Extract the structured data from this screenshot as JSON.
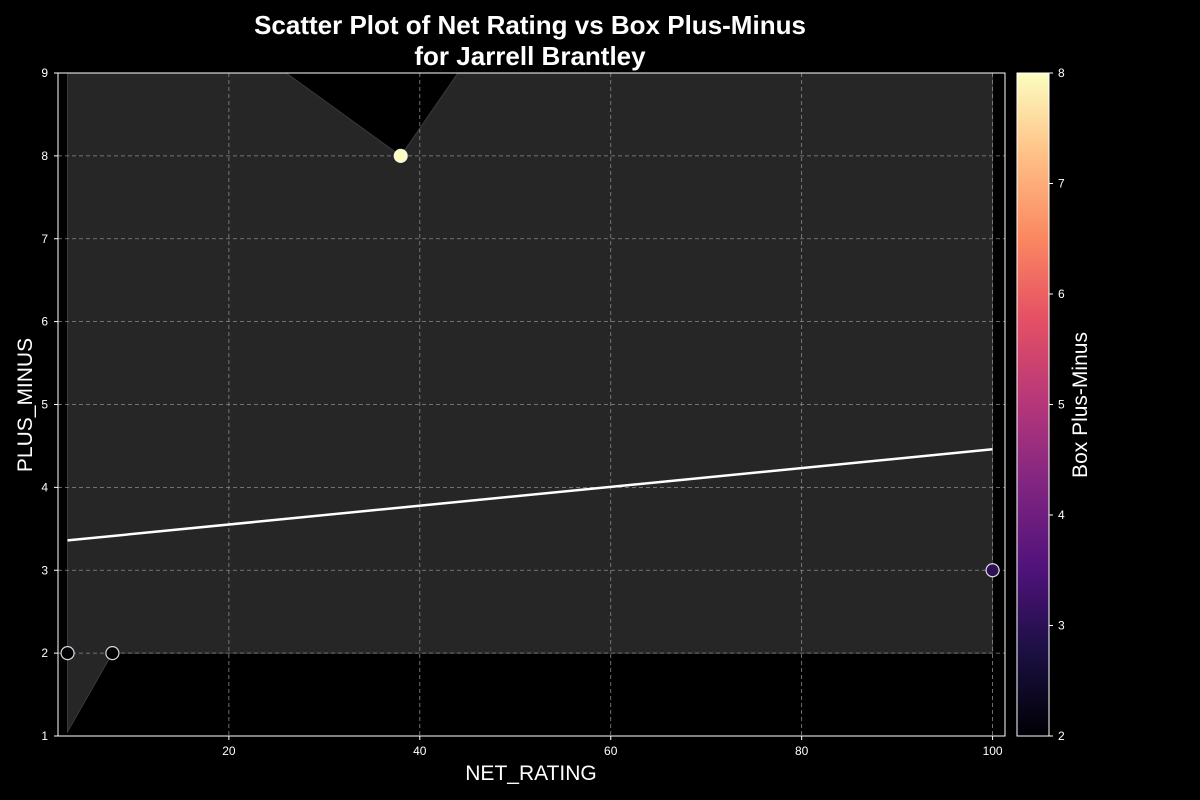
{
  "chart_data": {
    "type": "scatter",
    "title_lines": [
      "Scatter Plot of Net Rating vs Box Plus-Minus",
      "for Jarrell Brantley"
    ],
    "xlabel": "NET_RATING",
    "ylabel": "PLUS_MINUS",
    "xlim": [
      2.1,
      101.3
    ],
    "ylim": [
      1,
      9
    ],
    "x_ticks": [
      20,
      40,
      60,
      80,
      100
    ],
    "y_ticks": [
      1,
      2,
      3,
      4,
      5,
      6,
      7,
      8,
      9
    ],
    "grid": true,
    "points": [
      {
        "x": 3.1,
        "y": 2,
        "color_value": 2
      },
      {
        "x": 7.8,
        "y": 2,
        "color_value": 2
      },
      {
        "x": 38.0,
        "y": 8,
        "color_value": 8
      },
      {
        "x": 100.0,
        "y": 3,
        "color_value": 3
      }
    ],
    "trend_line": {
      "x": [
        3.1,
        100.0
      ],
      "y": [
        3.36,
        4.46
      ]
    },
    "confidence_band": {
      "upper": [
        [
          3.1,
          9.0
        ],
        [
          26.0,
          9.0
        ],
        [
          38.0,
          8.0
        ],
        [
          44.0,
          9.0
        ],
        [
          100.0,
          9.0
        ]
      ],
      "lower": [
        [
          3.1,
          1.05
        ],
        [
          7.8,
          2.0
        ],
        [
          100.0,
          2.0
        ]
      ]
    },
    "colorbar": {
      "label": "Box Plus-Minus",
      "range": [
        2,
        8
      ],
      "ticks": [
        2,
        3,
        4,
        5,
        6,
        7,
        8
      ],
      "colormap": "magma"
    },
    "colors": {
      "background": "#000000",
      "plot_area": "#000000",
      "band": "#262626",
      "grid": "#8a8a8a",
      "trend": "#ffffff",
      "text": "#ffffff"
    }
  }
}
